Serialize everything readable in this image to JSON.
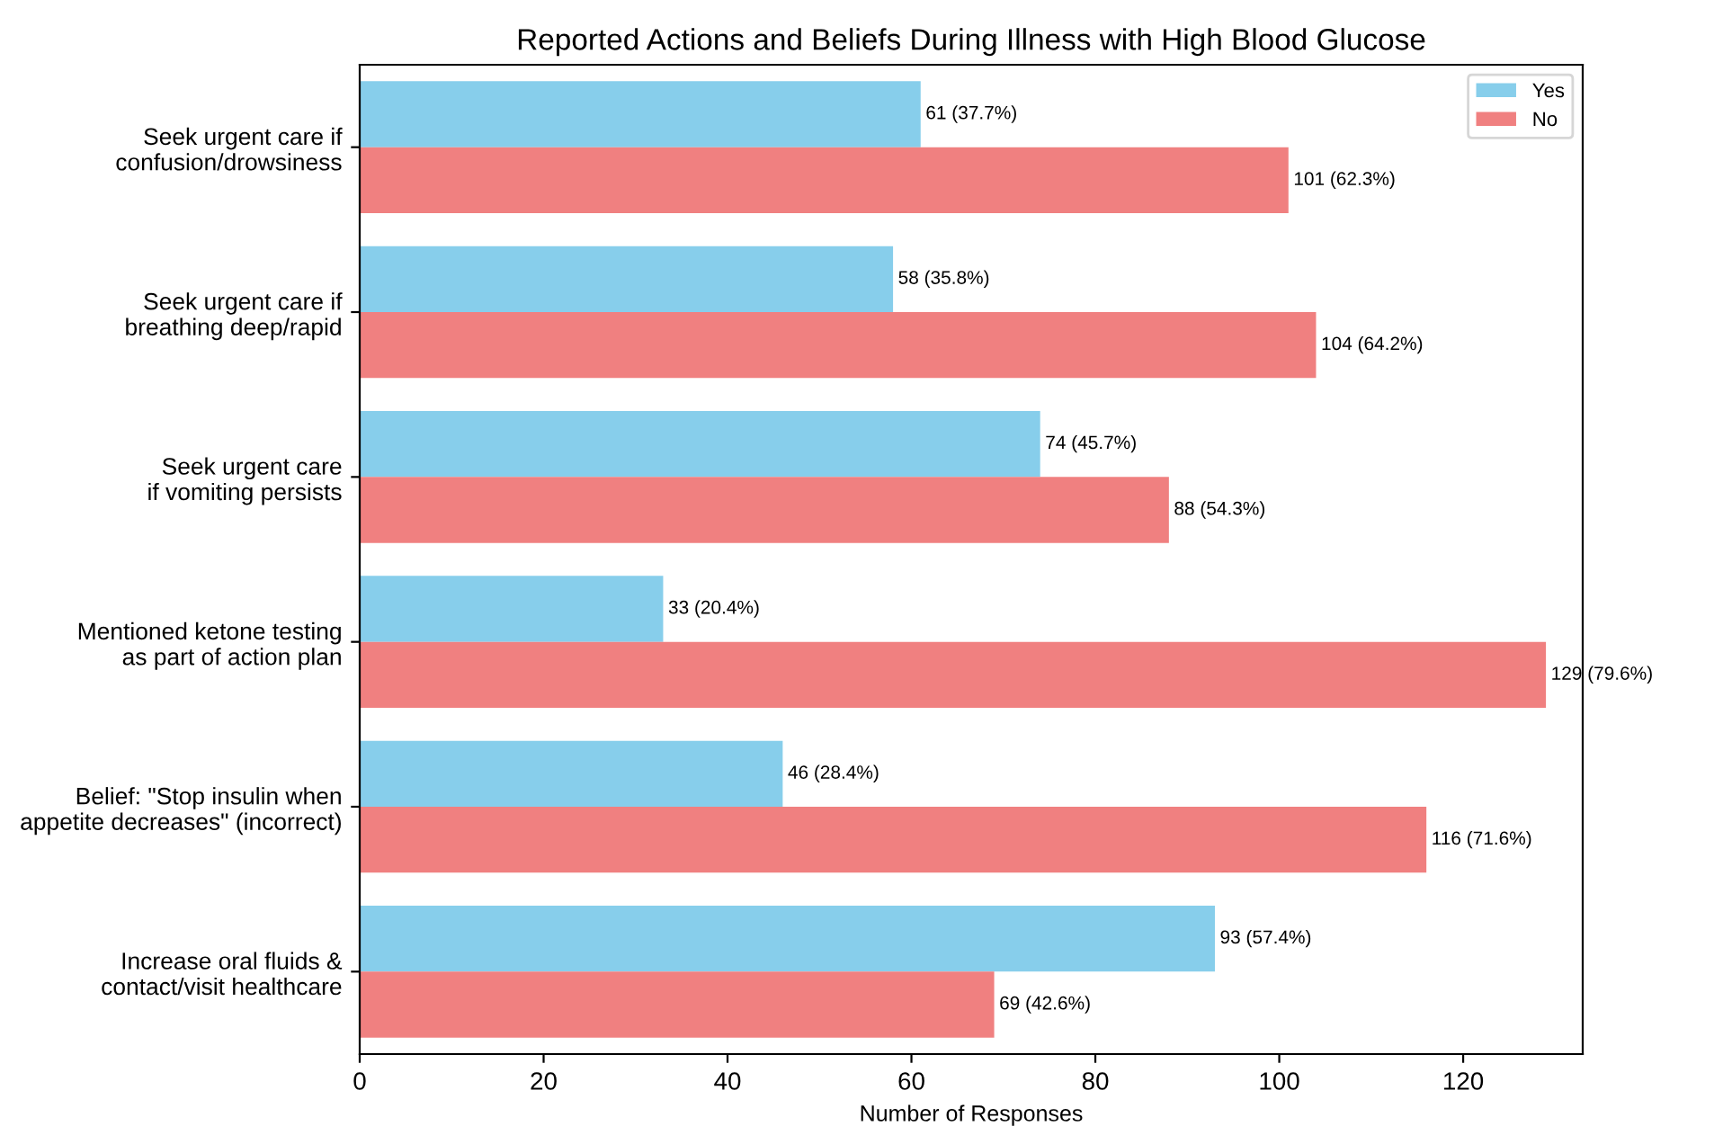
{
  "chart_data": {
    "type": "bar",
    "orientation": "horizontal",
    "title": "Reported Actions and Beliefs During Illness with High Blood Glucose",
    "xlabel": "Number of Responses",
    "categories": [
      "Seek urgent care if\nconfusion/drowsiness",
      "Seek urgent care if\nbreathing deep/rapid",
      "Seek urgent care\nif vomiting persists",
      "Mentioned ketone testing\nas part of action plan",
      "Belief: \"Stop insulin when\nappetite decreases\" (incorrect)",
      "Increase oral fluids &\ncontact/visit healthcare"
    ],
    "series": [
      {
        "name": "Yes",
        "color": "#87ceeb",
        "values": [
          61,
          58,
          74,
          33,
          46,
          93
        ],
        "value_labels": [
          "61 (37.7%)",
          "58 (35.8%)",
          "74 (45.7%)",
          "33 (20.4%)",
          "46 (28.4%)",
          "93 (57.4%)"
        ]
      },
      {
        "name": "No",
        "color": "#f08080",
        "values": [
          101,
          104,
          88,
          129,
          116,
          69
        ],
        "value_labels": [
          "101 (62.3%)",
          "104 (64.2%)",
          "88 (54.3%)",
          "129 (79.6%)",
          "116 (71.6%)",
          "69 (42.6%)"
        ]
      }
    ],
    "xlim": [
      0,
      133
    ],
    "xticks": [
      0,
      20,
      40,
      60,
      80,
      100,
      120
    ],
    "grid": false,
    "legend": "top right"
  }
}
